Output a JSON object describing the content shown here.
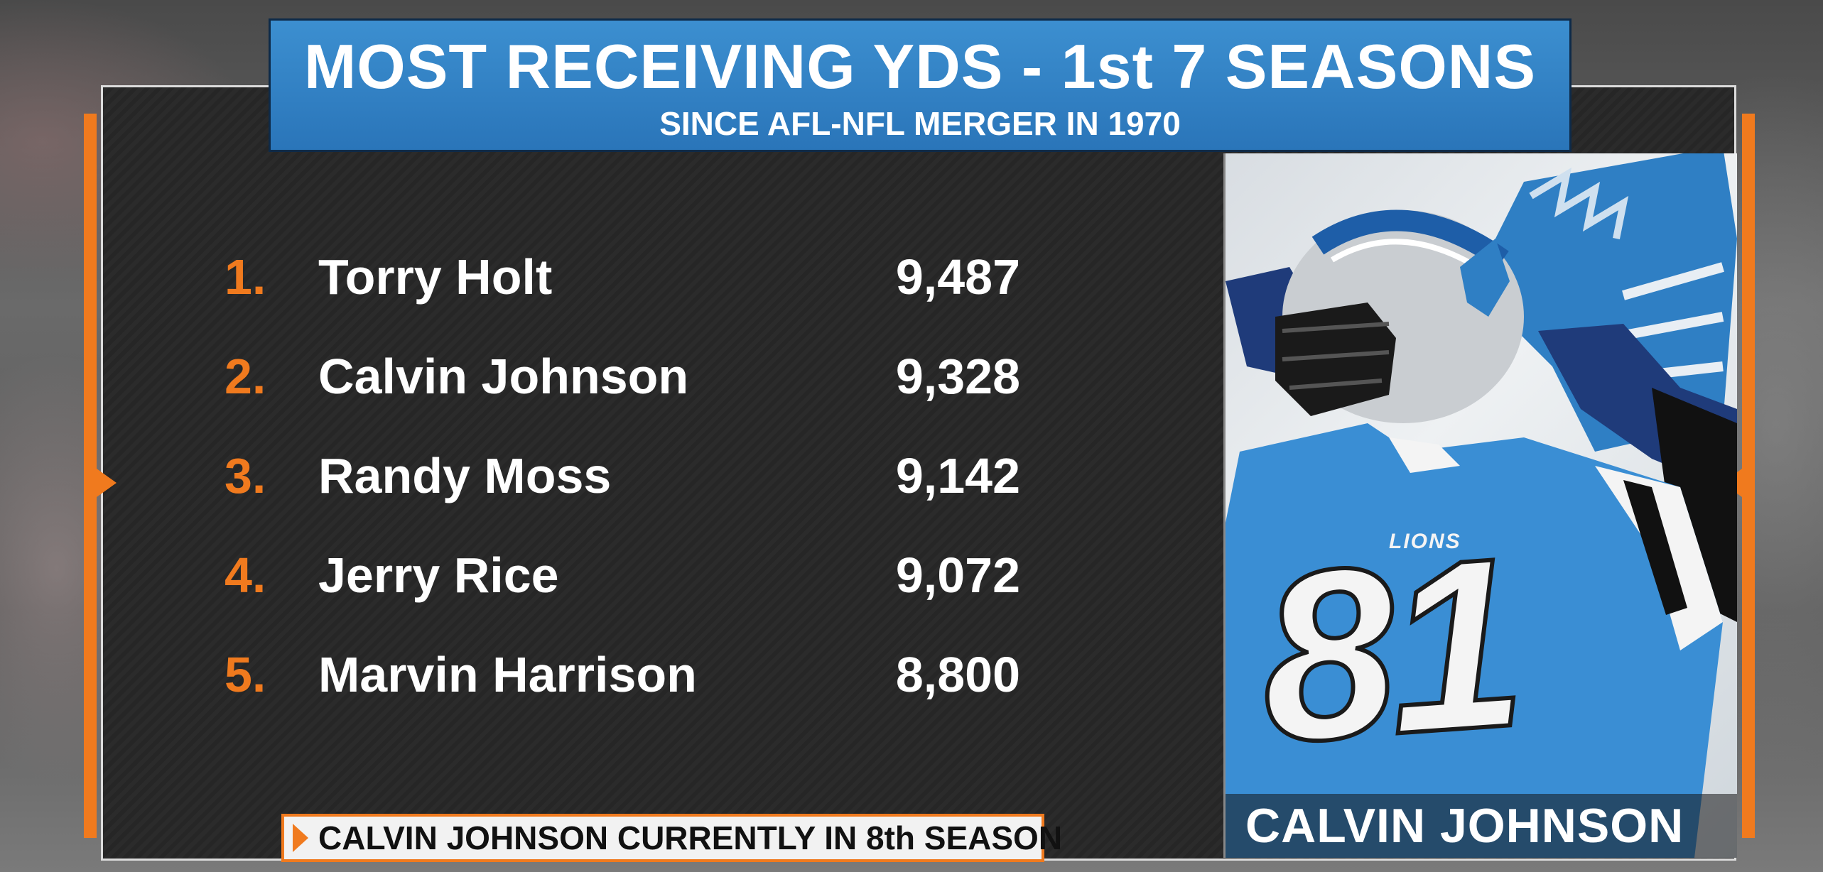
{
  "header": {
    "title": "MOST RECEIVING YDS - 1st 7 SEASONS",
    "subtitle": "SINCE AFL-NFL MERGER IN 1970"
  },
  "rankings": [
    {
      "rank": "1.",
      "name": "Torry Holt",
      "yards": "9,487"
    },
    {
      "rank": "2.",
      "name": "Calvin Johnson",
      "yards": "9,328"
    },
    {
      "rank": "3.",
      "name": "Randy Moss",
      "yards": "9,142"
    },
    {
      "rank": "4.",
      "name": "Jerry Rice",
      "yards": "9,072"
    },
    {
      "rank": "5.",
      "name": "Marvin Harrison",
      "yards": "8,800"
    }
  ],
  "footer_note": "CALVIN JOHNSON CURRENTLY IN 8th SEASON",
  "photo": {
    "caption": "CALVIN JOHNSON",
    "jersey_number": "81",
    "jersey_text": "LIONS"
  },
  "colors": {
    "accent_orange": "#f07a1e",
    "header_blue": "#2a75b9",
    "lions_blue": "#3a8ed4"
  }
}
